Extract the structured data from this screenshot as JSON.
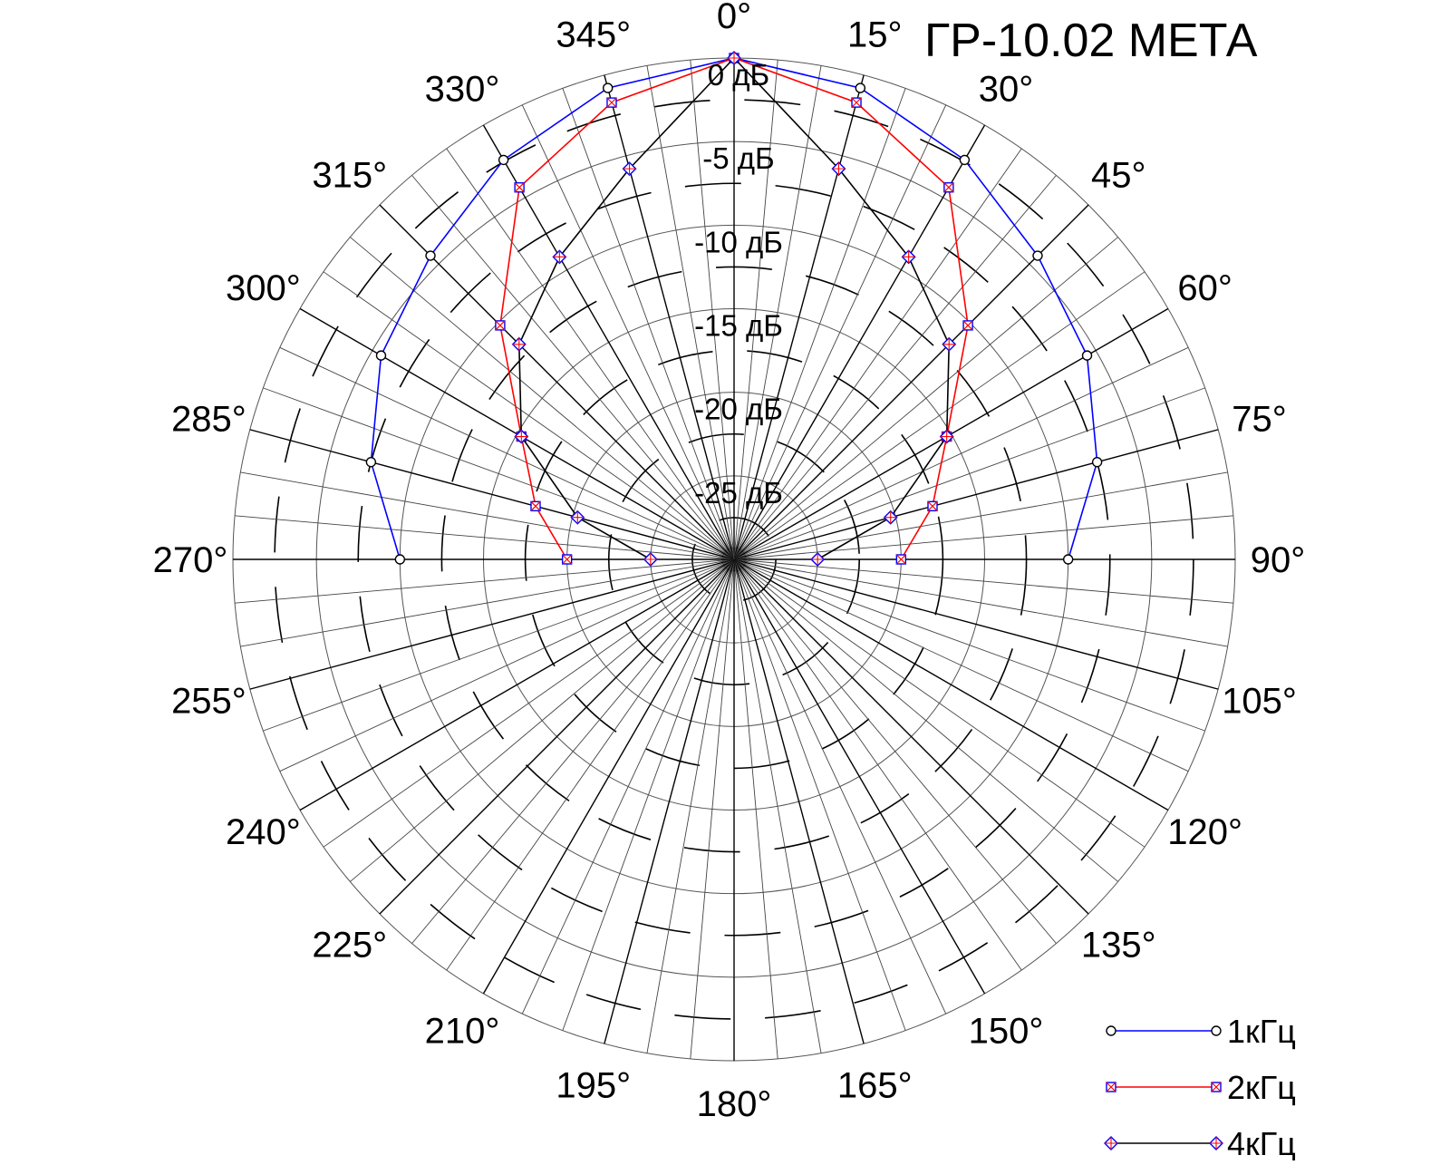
{
  "chart_data": {
    "type": "polar-line",
    "title": "ГР-10.02 МЕТА",
    "angle_ticks": [
      0,
      15,
      30,
      45,
      60,
      75,
      90,
      105,
      120,
      135,
      150,
      165,
      180,
      195,
      210,
      225,
      240,
      255,
      270,
      285,
      300,
      315,
      330,
      345
    ],
    "angle_tick_labels": [
      "0°",
      "15°",
      "30°",
      "45°",
      "60°",
      "75°",
      "90°",
      "105°",
      "120°",
      "135°",
      "150°",
      "165°",
      "180°",
      "195°",
      "210°",
      "225°",
      "240°",
      "255°",
      "270°",
      "285°",
      "300°",
      "315°",
      "330°",
      "345°"
    ],
    "radial_ticks": [
      0,
      -5,
      -10,
      -15,
      -20,
      -25
    ],
    "radial_tick_labels": [
      "0 дБ",
      "-5 дБ",
      "-10 дБ",
      "-15 дБ",
      "-20 дБ",
      "-25 дБ"
    ],
    "radial_range": [
      -30,
      0
    ],
    "grid": true,
    "legend_position": "bottom-right",
    "series": [
      {
        "name": "1кГц",
        "color": "#0000ff",
        "marker": "circle",
        "points": [
          [
            270,
            -10
          ],
          [
            285,
            -7.5
          ],
          [
            300,
            -5.6
          ],
          [
            315,
            -4.3
          ],
          [
            330,
            -2.4
          ],
          [
            345,
            -0.8
          ],
          [
            0,
            0
          ],
          [
            15,
            -0.8
          ],
          [
            30,
            -2.4
          ],
          [
            45,
            -4.3
          ],
          [
            60,
            -5.6
          ],
          [
            75,
            -7.5
          ],
          [
            90,
            -10
          ]
        ]
      },
      {
        "name": "2кГц",
        "color": "#ff0000",
        "marker": "square-x",
        "points": [
          [
            270,
            -20
          ],
          [
            285,
            -17.7
          ],
          [
            300,
            -15.3
          ],
          [
            315,
            -10.2
          ],
          [
            330,
            -4.3
          ],
          [
            345,
            -1.7
          ],
          [
            0,
            0
          ],
          [
            15,
            -1.7
          ],
          [
            30,
            -4.3
          ],
          [
            45,
            -10.2
          ],
          [
            60,
            -15.3
          ],
          [
            75,
            -17.7
          ],
          [
            90,
            -20
          ]
        ]
      },
      {
        "name": "4кГц",
        "color": "#000000",
        "marker": "diamond",
        "marker_color": "#ff0000",
        "points": [
          [
            270,
            -25
          ],
          [
            285,
            -20.3
          ],
          [
            300,
            -15.3
          ],
          [
            315,
            -11.8
          ],
          [
            330,
            -9.1
          ],
          [
            345,
            -5.8
          ],
          [
            0,
            0
          ],
          [
            15,
            -5.8
          ],
          [
            30,
            -9.1
          ],
          [
            45,
            -11.8
          ],
          [
            60,
            -15.3
          ],
          [
            75,
            -20.3
          ],
          [
            90,
            -25
          ]
        ]
      }
    ]
  }
}
